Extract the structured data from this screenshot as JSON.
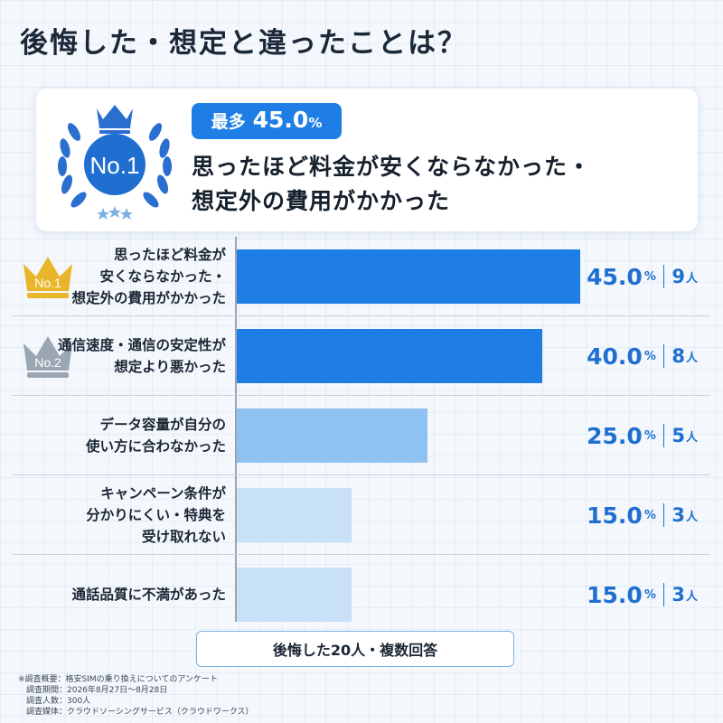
{
  "title": "後悔した・想定と違ったことは？",
  "hero": {
    "badge_text": "No.1",
    "most_label": "最多",
    "most_value": "45.0",
    "most_unit": "%",
    "line1": "思ったほど料金が安くならなかった・",
    "line2": "想定外の費用がかかった"
  },
  "colors": {
    "bar_dark": "#1f7ee6",
    "bar_mid": "#8fc2f0",
    "bar_light": "#c8e1f7",
    "accent_text": "#1f6fd0",
    "gold": "#e8b52b",
    "silver": "#9aa6b2"
  },
  "chart_data": {
    "type": "bar",
    "orientation": "horizontal",
    "categories": [
      "思ったほど料金が\n安くならなかった・\n想定外の費用がかかった",
      "通信速度・通信の安定性が\n想定より悪かった",
      "データ容量が自分の\n使い方に合わなかった",
      "キャンペーン条件が\n分かりにくい・特典を\n受け取れない",
      "通話品質に不満があった"
    ],
    "values": [
      45.0,
      40.0,
      25.0,
      15.0,
      15.0
    ],
    "value_labels": [
      "45.0",
      "40.0",
      "25.0",
      "15.0",
      "15.0"
    ],
    "unit": "%",
    "counts": [
      "9",
      "8",
      "5",
      "3",
      "3"
    ],
    "count_unit": "人",
    "rank_badges": [
      "No.1",
      "No.2",
      "",
      "",
      ""
    ],
    "xlim": [
      0,
      50
    ]
  },
  "summary": "後悔した20人・複数回答",
  "notes": [
    "※調査概要：格安SIMの乗り換えについてのアンケート",
    "　調査期間：2026年8月27日～8月28日",
    "　調査人数：300人",
    "　調査媒体：クラウドソーシングサービス（クラウドワークス）"
  ]
}
